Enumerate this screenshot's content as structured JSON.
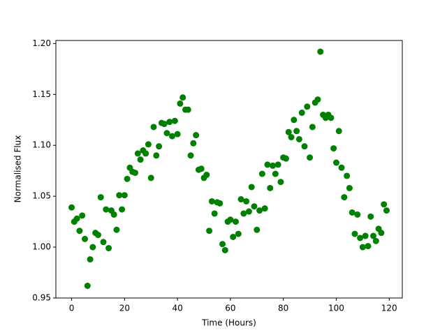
{
  "chart_data": {
    "type": "scatter",
    "xlabel": "Time (Hours)",
    "ylabel": "Normalised Flux",
    "color": "#008000",
    "x": [
      0,
      1,
      2,
      3,
      4,
      5,
      6,
      7,
      8,
      9,
      10,
      11,
      12,
      13,
      14,
      15,
      16,
      17,
      18,
      19,
      20,
      21,
      22,
      23,
      24,
      25,
      26,
      27,
      28,
      29,
      30,
      31,
      32,
      33,
      34,
      35,
      36,
      37,
      38,
      39,
      40,
      41,
      42,
      43,
      44,
      45,
      46,
      47,
      48,
      49,
      50,
      51,
      52,
      53,
      54,
      55,
      56,
      57,
      58,
      59,
      60,
      61,
      62,
      63,
      64,
      65,
      66,
      67,
      68,
      69,
      70,
      71,
      72,
      73,
      74,
      75,
      76,
      77,
      78,
      79,
      80,
      81,
      82,
      83,
      84,
      85,
      86,
      87,
      88,
      89,
      90,
      91,
      92,
      93,
      94,
      95,
      96,
      97,
      98,
      99,
      100,
      101,
      102,
      103,
      104,
      105,
      106,
      107,
      108,
      109,
      110,
      111,
      112,
      113,
      114,
      115,
      116,
      117,
      118,
      119
    ],
    "values": [
      1.039,
      1.025,
      1.028,
      1.016,
      1.031,
      1.008,
      0.962,
      0.988,
      1.0,
      1.014,
      1.012,
      1.049,
      1.005,
      1.037,
      0.999,
      1.036,
      1.032,
      1.017,
      1.051,
      1.037,
      1.051,
      1.067,
      1.078,
      1.074,
      1.073,
      1.092,
      1.086,
      1.095,
      1.092,
      1.101,
      1.068,
      1.118,
      1.09,
      1.099,
      1.122,
      1.121,
      1.112,
      1.123,
      1.109,
      1.124,
      1.111,
      1.141,
      1.147,
      1.135,
      1.135,
      1.09,
      1.102,
      1.11,
      1.076,
      1.077,
      1.068,
      1.071,
      1.016,
      1.045,
      1.033,
      1.044,
      1.043,
      1.003,
      0.997,
      1.025,
      1.027,
      1.01,
      1.025,
      1.013,
      1.047,
      1.033,
      1.045,
      1.035,
      1.059,
      1.04,
      1.017,
      1.036,
      1.072,
      1.038,
      1.081,
      1.058,
      1.08,
      1.072,
      1.081,
      1.064,
      1.088,
      1.087,
      1.113,
      1.108,
      1.125,
      1.114,
      1.106,
      1.132,
      1.099,
      1.138,
      1.088,
      1.118,
      1.142,
      1.145,
      1.192,
      1.13,
      1.127,
      1.13,
      1.127,
      1.097,
      1.083,
      1.114,
      1.078,
      1.049,
      1.07,
      1.058,
      1.034,
      1.013,
      1.032,
      1.009,
      1.0,
      1.011,
      1.001,
      1.03,
      1.011,
      1.006,
      1.018,
      1.014,
      1.042,
      1.036
    ],
    "xlim": [
      -5.95,
      124.95
    ],
    "ylim": [
      0.95,
      1.203
    ],
    "xticks": [
      0,
      20,
      40,
      60,
      80,
      100,
      120
    ],
    "yticks": [
      0.95,
      {
        "value": 1.0,
        "label": "1.00"
      },
      1.05,
      {
        "value": 1.1,
        "label": "1.10"
      },
      1.15,
      {
        "value": 1.2,
        "label": "1.20"
      }
    ]
  }
}
